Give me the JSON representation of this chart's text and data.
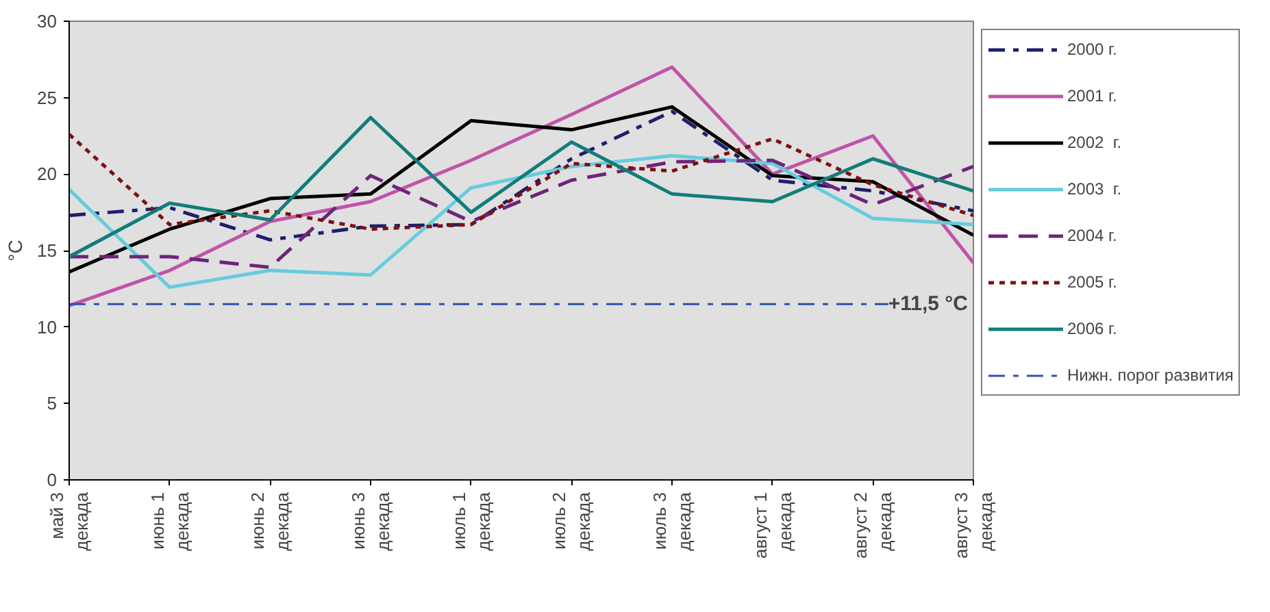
{
  "chart_data": {
    "type": "line",
    "ylabel": "°C",
    "categories": [
      "май 3 декада",
      "июнь 1 декада",
      "июнь 2 декада",
      "июнь 3 декада",
      "июль 1 декада",
      "июль 2 декада",
      "июль 3 декада",
      "август 1 декада",
      "август 2 декада",
      "август 3 декада"
    ],
    "ylim": [
      0,
      30
    ],
    "yticks": [
      0,
      5,
      10,
      15,
      20,
      25,
      30
    ],
    "grid": false,
    "legend": "right",
    "marker": "none",
    "series": [
      {
        "name": "2000 г.",
        "color": "#1f1f6e",
        "line_style": "dashdot",
        "values": [
          17.3,
          17.8,
          15.7,
          16.6,
          16.7,
          21.0,
          24.1,
          19.6,
          18.9,
          17.6
        ]
      },
      {
        "name": "2001 г.",
        "color": "#c054a8",
        "line_style": "solid",
        "values": [
          11.4,
          13.7,
          16.9,
          18.2,
          20.9,
          23.9,
          27.0,
          20.0,
          22.5,
          14.2
        ]
      },
      {
        "name": "2002  г.",
        "color": "#000000",
        "line_style": "solid",
        "values": [
          13.6,
          16.4,
          18.4,
          18.7,
          23.5,
          22.9,
          24.4,
          19.9,
          19.5,
          16.0
        ]
      },
      {
        "name": "2003  г.",
        "color": "#66ccdd",
        "line_style": "solid",
        "values": [
          19.0,
          12.6,
          13.7,
          13.4,
          19.1,
          20.5,
          21.2,
          20.7,
          17.1,
          16.7
        ]
      },
      {
        "name": "2004 г.",
        "color": "#6e2478",
        "line_style": "dashed",
        "values": [
          14.6,
          14.6,
          13.9,
          19.9,
          16.9,
          19.6,
          20.8,
          20.9,
          18.0,
          20.5
        ]
      },
      {
        "name": "2005 г.",
        "color": "#7f1010",
        "line_style": "dotted",
        "values": [
          22.6,
          16.7,
          17.6,
          16.4,
          16.7,
          20.7,
          20.2,
          22.3,
          19.3,
          17.3
        ]
      },
      {
        "name": "2006 г.",
        "color": "#127d7a",
        "line_style": "solid",
        "values": [
          14.6,
          18.1,
          17.0,
          23.7,
          17.5,
          22.1,
          18.7,
          18.2,
          21.0,
          18.9
        ]
      }
    ],
    "ref_lines": [
      {
        "axis": "y",
        "value": 11.5,
        "label": "Нижн. порог развития",
        "color": "#3050b0",
        "line_style": "dashdot"
      }
    ],
    "annotations": [
      "+11,5 °C"
    ]
  }
}
